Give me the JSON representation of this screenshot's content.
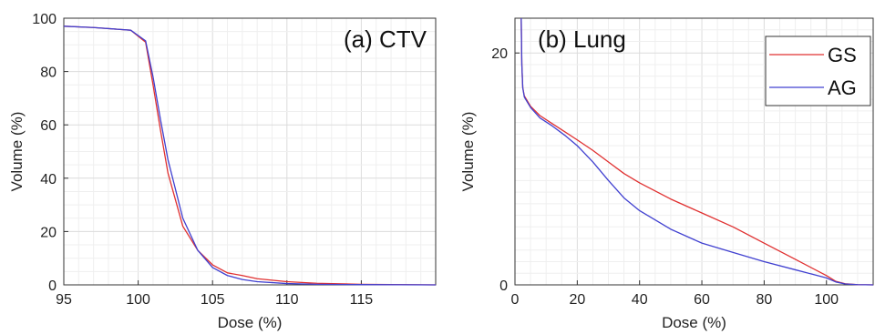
{
  "chart_data": [
    {
      "type": "line",
      "title": "(a) CTV",
      "xlabel": "Dose (%)",
      "ylabel": "Volume (%)",
      "xlim": [
        95,
        120
      ],
      "ylim": [
        0,
        100
      ],
      "xticks": [
        95,
        100,
        105,
        110,
        115
      ],
      "yticks": [
        0,
        20,
        40,
        60,
        80,
        100
      ],
      "grid": true,
      "series": [
        {
          "name": "GS",
          "color": "#e03030",
          "x": [
            95,
            97,
            99.5,
            100.5,
            101,
            101.5,
            102,
            103,
            104,
            105,
            106,
            107,
            108,
            110,
            112,
            115,
            120
          ],
          "y": [
            97,
            96.5,
            95.5,
            91,
            75,
            58,
            42,
            22,
            13,
            7.5,
            4.5,
            3.5,
            2.3,
            1.2,
            0.6,
            0.2,
            0
          ]
        },
        {
          "name": "AG",
          "color": "#4040d0",
          "x": [
            95,
            97,
            99.5,
            100.5,
            101,
            101.5,
            102,
            103,
            104,
            105,
            106,
            107,
            108,
            110,
            112,
            115,
            120
          ],
          "y": [
            97,
            96.5,
            95.5,
            91.5,
            78,
            62,
            47,
            25,
            13,
            6.5,
            3.5,
            2,
            1.2,
            0.5,
            0.2,
            0.1,
            0
          ]
        }
      ]
    },
    {
      "type": "line",
      "title": "(b) Lung",
      "xlabel": "Dose (%)",
      "ylabel": "Volume (%)",
      "xlim": [
        0,
        115
      ],
      "ylim": [
        0,
        23
      ],
      "xticks": [
        0,
        20,
        40,
        60,
        80,
        100
      ],
      "yticks": [
        0,
        20
      ],
      "grid": true,
      "legend": {
        "position": "top-right",
        "entries": [
          "GS",
          "AG"
        ]
      },
      "series": [
        {
          "name": "GS",
          "color": "#e03030",
          "x": [
            2,
            2.2,
            2.5,
            3,
            5,
            8,
            12,
            16,
            20,
            25,
            30,
            35,
            40,
            50,
            60,
            70,
            80,
            90,
            100,
            103,
            106,
            110,
            115
          ],
          "y": [
            23,
            19,
            17,
            16.3,
            15.4,
            14.6,
            13.9,
            13.2,
            12.5,
            11.6,
            10.6,
            9.6,
            8.8,
            7.4,
            6.2,
            5,
            3.6,
            2.2,
            0.8,
            0.3,
            0.1,
            0.02,
            0
          ]
        },
        {
          "name": "AG",
          "color": "#4040d0",
          "x": [
            2,
            2.2,
            2.5,
            3,
            5,
            8,
            12,
            16,
            20,
            25,
            30,
            35,
            40,
            50,
            60,
            70,
            80,
            90,
            100,
            103,
            106,
            110,
            115
          ],
          "y": [
            23,
            19,
            17,
            16.2,
            15.3,
            14.4,
            13.7,
            12.9,
            12,
            10.6,
            9,
            7.5,
            6.4,
            4.8,
            3.6,
            2.8,
            2,
            1.3,
            0.6,
            0.25,
            0.08,
            0.02,
            0
          ]
        }
      ]
    }
  ]
}
